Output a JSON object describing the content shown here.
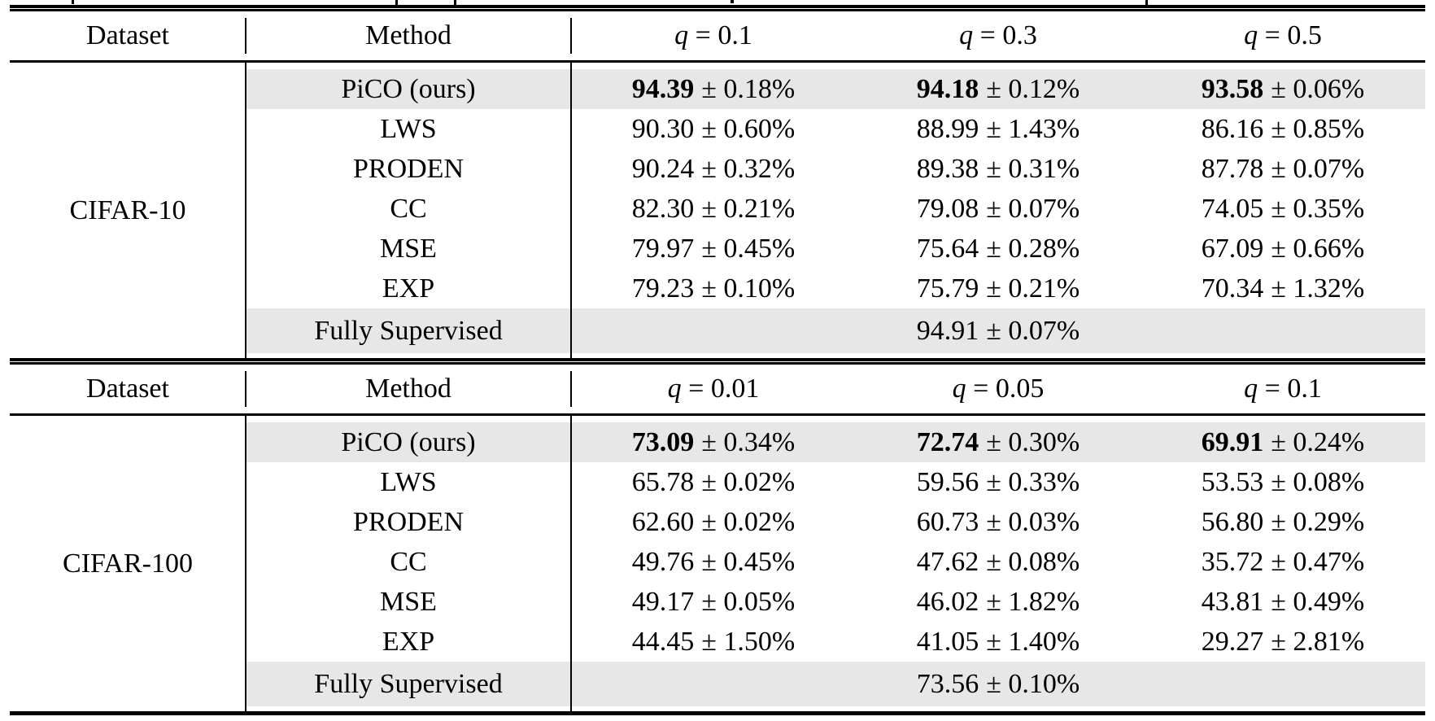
{
  "colors": {
    "background": "#ffffff",
    "shade": "#e7e7e7",
    "rule": "#000000",
    "text": "#000000"
  },
  "tables": [
    {
      "header": {
        "dataset": "Dataset",
        "method": "Method",
        "cols": [
          {
            "q": "q",
            "rest": " = 0.1"
          },
          {
            "q": "q",
            "rest": " = 0.3"
          },
          {
            "q": "q",
            "rest": " = 0.5"
          }
        ]
      },
      "dataset_label": "CIFAR-10",
      "rows": [
        {
          "method": "PiCO (ours)",
          "highlight": true,
          "bold": true,
          "values": [
            {
              "mean": "94.39",
              "err": "± 0.18%"
            },
            {
              "mean": "94.18",
              "err": "± 0.12%"
            },
            {
              "mean": "93.58",
              "err": "± 0.06%"
            }
          ]
        },
        {
          "method": "LWS",
          "highlight": false,
          "bold": false,
          "values": [
            {
              "mean": "90.30",
              "err": "± 0.60%"
            },
            {
              "mean": "88.99",
              "err": "± 1.43%"
            },
            {
              "mean": "86.16",
              "err": "± 0.85%"
            }
          ]
        },
        {
          "method": "PRODEN",
          "highlight": false,
          "bold": false,
          "values": [
            {
              "mean": "90.24",
              "err": "± 0.32%"
            },
            {
              "mean": "89.38",
              "err": "± 0.31%"
            },
            {
              "mean": "87.78",
              "err": "± 0.07%"
            }
          ]
        },
        {
          "method": "CC",
          "highlight": false,
          "bold": false,
          "values": [
            {
              "mean": "82.30",
              "err": "± 0.21%"
            },
            {
              "mean": "79.08",
              "err": "± 0.07%"
            },
            {
              "mean": "74.05",
              "err": "± 0.35%"
            }
          ]
        },
        {
          "method": "MSE",
          "highlight": false,
          "bold": false,
          "values": [
            {
              "mean": "79.97",
              "err": "± 0.45%"
            },
            {
              "mean": "75.64",
              "err": "± 0.28%"
            },
            {
              "mean": "67.09",
              "err": "± 0.66%"
            }
          ]
        },
        {
          "method": "EXP",
          "highlight": false,
          "bold": false,
          "values": [
            {
              "mean": "79.23",
              "err": "± 0.10%"
            },
            {
              "mean": "75.79",
              "err": "± 0.21%"
            },
            {
              "mean": "70.34",
              "err": "± 1.32%"
            }
          ]
        }
      ],
      "fully_supervised": {
        "label": "Fully Supervised",
        "highlight": true,
        "value": {
          "mean": "94.91",
          "err": "± 0.07%"
        }
      }
    },
    {
      "header": {
        "dataset": "Dataset",
        "method": "Method",
        "cols": [
          {
            "q": "q",
            "rest": " = 0.01"
          },
          {
            "q": "q",
            "rest": " = 0.05"
          },
          {
            "q": "q",
            "rest": " = 0.1"
          }
        ]
      },
      "dataset_label": "CIFAR-100",
      "rows": [
        {
          "method": "PiCO (ours)",
          "highlight": true,
          "bold": true,
          "values": [
            {
              "mean": "73.09",
              "err": "± 0.34%"
            },
            {
              "mean": "72.74",
              "err": "± 0.30%"
            },
            {
              "mean": "69.91",
              "err": "± 0.24%"
            }
          ]
        },
        {
          "method": "LWS",
          "highlight": false,
          "bold": false,
          "values": [
            {
              "mean": "65.78",
              "err": "± 0.02%"
            },
            {
              "mean": "59.56",
              "err": "± 0.33%"
            },
            {
              "mean": "53.53",
              "err": "± 0.08%"
            }
          ]
        },
        {
          "method": "PRODEN",
          "highlight": false,
          "bold": false,
          "values": [
            {
              "mean": "62.60",
              "err": "± 0.02%"
            },
            {
              "mean": "60.73",
              "err": "± 0.03%"
            },
            {
              "mean": "56.80",
              "err": "± 0.29%"
            }
          ]
        },
        {
          "method": "CC",
          "highlight": false,
          "bold": false,
          "values": [
            {
              "mean": "49.76",
              "err": "± 0.45%"
            },
            {
              "mean": "47.62",
              "err": "± 0.08%"
            },
            {
              "mean": "35.72",
              "err": "± 0.47%"
            }
          ]
        },
        {
          "method": "MSE",
          "highlight": false,
          "bold": false,
          "values": [
            {
              "mean": "49.17",
              "err": "± 0.05%"
            },
            {
              "mean": "46.02",
              "err": "± 1.82%"
            },
            {
              "mean": "43.81",
              "err": "± 0.49%"
            }
          ]
        },
        {
          "method": "EXP",
          "highlight": false,
          "bold": false,
          "values": [
            {
              "mean": "44.45",
              "err": "± 1.50%"
            },
            {
              "mean": "41.05",
              "err": "± 1.40%"
            },
            {
              "mean": "29.27",
              "err": "± 2.81%"
            }
          ]
        }
      ],
      "fully_supervised": {
        "label": "Fully Supervised",
        "highlight": true,
        "value": {
          "mean": "73.56",
          "err": "± 0.10%"
        }
      }
    }
  ]
}
